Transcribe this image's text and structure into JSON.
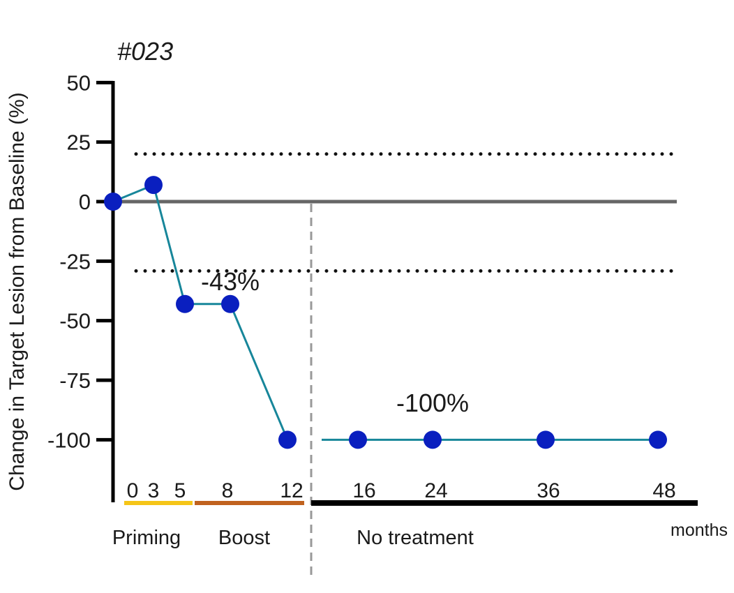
{
  "chart_data": {
    "type": "line",
    "title": "#023",
    "ylabel": "Change in Target Lesion from Baseline (%)",
    "xlabel": "months",
    "ylim": [
      -100,
      50
    ],
    "yticks": [
      50,
      25,
      0,
      -25,
      -50,
      -75,
      -100
    ],
    "xtick_labels": [
      "0",
      "3",
      "5",
      "8",
      "12",
      "16",
      "24",
      "36",
      "48"
    ],
    "reference_lines": [
      20,
      0,
      -30
    ],
    "series": [
      {
        "x": [
          "0",
          "3",
          "5",
          "8",
          "12",
          "16",
          "24",
          "36",
          "48"
        ],
        "values": [
          0,
          7,
          -43,
          -43,
          -100,
          -100,
          -100,
          -100,
          -100
        ],
        "color": "#0a1fbf",
        "line_color": "#17869a"
      }
    ],
    "annotations": [
      "-43%",
      "-100%"
    ],
    "phases": [
      {
        "label": "Priming",
        "color": "#f5c518"
      },
      {
        "label": "Boost",
        "color": "#c0621e"
      },
      {
        "label": "No treatment",
        "color": "#000000"
      }
    ],
    "grid": false,
    "legend": "none"
  }
}
